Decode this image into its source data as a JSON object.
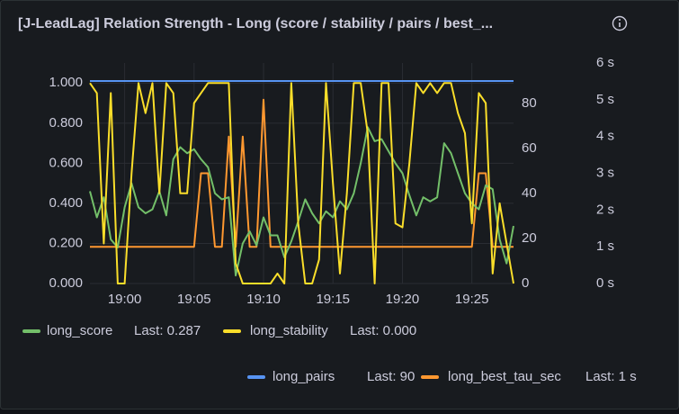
{
  "chart_data": {
    "type": "line",
    "title": "[J-LeadLag] Relation Strength - Long (score / stability / pairs / best_...",
    "x": [
      "18:57:30",
      "18:58:00",
      "18:58:30",
      "18:59:00",
      "18:59:30",
      "19:00:00",
      "19:00:30",
      "19:01:00",
      "19:01:30",
      "19:02:00",
      "19:02:30",
      "19:03:00",
      "19:03:30",
      "19:04:00",
      "19:04:30",
      "19:05:00",
      "19:05:30",
      "19:06:00",
      "19:06:30",
      "19:07:00",
      "19:07:30",
      "19:08:00",
      "19:08:30",
      "19:09:00",
      "19:09:30",
      "19:10:00",
      "19:10:30",
      "19:11:00",
      "19:11:30",
      "19:12:00",
      "19:12:30",
      "19:13:00",
      "19:13:30",
      "19:14:00",
      "19:14:30",
      "19:15:00",
      "19:15:30",
      "19:16:00",
      "19:16:30",
      "19:17:00",
      "19:17:30",
      "19:18:00",
      "19:18:30",
      "19:19:00",
      "19:19:30",
      "19:20:00",
      "19:20:30",
      "19:21:00",
      "19:21:30",
      "19:22:00",
      "19:22:30",
      "19:23:00",
      "19:23:30",
      "19:24:00",
      "19:24:30",
      "19:25:00",
      "19:25:30",
      "19:26:00",
      "19:26:30",
      "19:27:00",
      "19:27:30",
      "19:28:00"
    ],
    "xlim": [
      "18:57:30",
      "19:28:00"
    ],
    "xticks": [
      "19:00",
      "19:05",
      "19:10",
      "19:15",
      "19:20",
      "19:25"
    ],
    "ylim": [
      0,
      1.1
    ],
    "yticks": [
      {
        "value": 0,
        "label": "0.000"
      },
      {
        "value": 0.2,
        "label": "0.200"
      },
      {
        "value": 0.4,
        "label": "0.400"
      },
      {
        "value": 0.6,
        "label": "0.600"
      },
      {
        "value": 0.8,
        "label": "0.800"
      },
      {
        "value": 1,
        "label": "1.000"
      }
    ],
    "y2lim": [
      0,
      98
    ],
    "y2ticks": [
      0,
      20,
      40,
      60,
      80
    ],
    "y3lim": [
      0,
      6
    ],
    "y3ticks": [
      {
        "value": 0,
        "label": "0 s"
      },
      {
        "value": 1,
        "label": "1 s"
      },
      {
        "value": 2,
        "label": "2 s"
      },
      {
        "value": 3,
        "label": "3 s"
      },
      {
        "value": 4,
        "label": "4 s"
      },
      {
        "value": 5,
        "label": "5 s"
      },
      {
        "value": 6,
        "label": "6 s"
      }
    ],
    "grid": true,
    "series": [
      {
        "name": "long_score",
        "color": "#73bf69",
        "legend_label": "Last: 0.287",
        "values": [
          0.46,
          0.33,
          0.43,
          0.22,
          0.18,
          0.38,
          0.5,
          0.38,
          0.35,
          0.37,
          0.46,
          0.34,
          0.62,
          0.68,
          0.65,
          0.67,
          0.62,
          0.58,
          0.45,
          0.42,
          0.43,
          0.04,
          0.2,
          0.26,
          0.19,
          0.33,
          0.24,
          0.24,
          0.13,
          0.21,
          0.31,
          0.42,
          0.35,
          0.3,
          0.36,
          0.33,
          0.41,
          0.37,
          0.45,
          0.6,
          0.78,
          0.71,
          0.72,
          0.66,
          0.6,
          0.55,
          0.44,
          0.34,
          0.43,
          0.41,
          0.43,
          0.7,
          0.65,
          0.55,
          0.45,
          0.4,
          0.37,
          0.49,
          0.47,
          0.22,
          0.1,
          0.287
        ]
      },
      {
        "name": "long_stability",
        "color": "#fade2a",
        "legend_label": "Last: 0.000",
        "values": [
          1.0,
          0.95,
          0.2,
          0.95,
          0,
          0,
          0.55,
          1.0,
          0.85,
          1.0,
          0.45,
          1.0,
          0.95,
          0.45,
          0.45,
          0.9,
          0.95,
          1.0,
          1.0,
          1.0,
          1.0,
          0.1,
          0,
          0,
          0,
          0,
          0,
          0.05,
          0,
          1.0,
          0.3,
          0,
          0,
          0.12,
          1.0,
          0.5,
          0.05,
          0.45,
          1.0,
          1.0,
          0.75,
          0,
          1.0,
          1.0,
          0.3,
          0.28,
          0.6,
          1.0,
          0.95,
          1.0,
          0.95,
          1.0,
          1.0,
          0.85,
          0.75,
          0.3,
          0.95,
          0.9,
          0.05,
          0.4,
          0.2,
          0
        ]
      },
      {
        "name": "long_pairs",
        "color": "#5794f2",
        "axis": "y2",
        "legend_label": "Last: 90",
        "values": [
          90,
          90,
          90,
          90,
          90,
          90,
          90,
          90,
          90,
          90,
          90,
          90,
          90,
          90,
          90,
          90,
          90,
          90,
          90,
          90,
          90,
          90,
          90,
          90,
          90,
          90,
          90,
          90,
          90,
          90,
          90,
          90,
          90,
          90,
          90,
          90,
          90,
          90,
          90,
          90,
          90,
          90,
          90,
          90,
          90,
          90,
          90,
          90,
          90,
          90,
          90,
          90,
          90,
          90,
          90,
          90,
          90,
          90,
          90,
          90,
          90,
          90
        ]
      },
      {
        "name": "long_best_tau_sec",
        "color": "#ff9830",
        "axis": "y3",
        "legend_label": "Last: 1 s",
        "values": [
          1,
          1,
          1,
          1,
          1,
          1,
          1,
          1,
          1,
          1,
          1,
          1,
          1,
          1,
          1,
          1,
          3,
          3,
          1,
          1,
          4,
          1,
          4,
          1,
          1,
          5,
          1,
          1,
          1,
          1,
          1,
          1,
          1,
          1,
          1,
          1,
          1,
          1,
          1,
          1,
          1,
          1,
          1,
          1,
          1,
          1,
          1,
          1,
          1,
          1,
          1,
          1,
          1,
          1,
          1,
          1,
          3,
          3,
          1,
          1,
          1,
          1
        ]
      }
    ]
  }
}
